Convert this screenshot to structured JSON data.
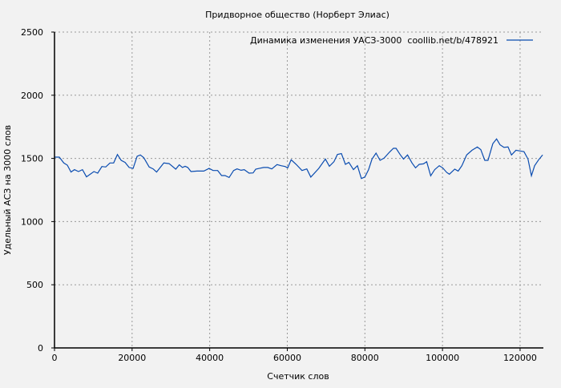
{
  "chart_data": {
    "type": "line",
    "title": "Придворное общество (Норберт Элиас)",
    "xlabel": "Счетчик слов",
    "ylabel": "Удельный АСЗ на 3000 слов",
    "xlim": [
      0,
      126000
    ],
    "ylim": [
      0,
      2500
    ],
    "xticks": [
      0,
      20000,
      40000,
      60000,
      80000,
      100000,
      120000
    ],
    "yticks": [
      0,
      500,
      1000,
      1500,
      2000,
      2500
    ],
    "grid": true,
    "legend_position": "top-right",
    "colors": {
      "line": "#0a4cb0",
      "background": "#f2f2f2",
      "grid": "#999999"
    },
    "series": [
      {
        "name": "Динамика изменения УАСЗ-3000  coollib.net/b/478921",
        "x": [
          0,
          1237,
          2405,
          3298,
          4260,
          5153,
          6184,
          7214,
          8245,
          10168,
          11130,
          12229,
          13191,
          14290,
          15251,
          16213,
          17176,
          18206,
          19237,
          20267,
          21298,
          22122,
          23015,
          24389,
          25420,
          26313,
          28168,
          29542,
          31259,
          32152,
          32976,
          33663,
          34350,
          35175,
          36755,
          38473,
          39847,
          40877,
          42045,
          43075,
          43956,
          44999,
          46167,
          47060,
          48090,
          48914,
          50151,
          51181,
          51868,
          52761,
          53929,
          54960,
          55990,
          57364,
          58395,
          59425,
          60112,
          61005,
          62268,
          63779,
          65016,
          66047,
          68108,
          69825,
          70856,
          72023,
          72917,
          73947,
          74978,
          75871,
          77039,
          78069,
          79100,
          79993,
          80954,
          81848,
          82878,
          83909,
          84939,
          86313,
          87344,
          88031,
          89061,
          89954,
          90985,
          92153,
          93046,
          94008,
          95107,
          95931,
          96962,
          97992,
          99160,
          100053,
          101084,
          101771,
          103145,
          104038,
          105000,
          106236,
          107610,
          108984,
          109877,
          110908,
          111732,
          112969,
          113930,
          114823,
          115854,
          116884,
          117777,
          118945,
          119976,
          121006,
          122037,
          122930,
          123754,
          124785,
          125815
        ],
        "y": [
          1510,
          1510,
          1464,
          1447,
          1392,
          1411,
          1396,
          1411,
          1354,
          1396,
          1383,
          1436,
          1432,
          1464,
          1464,
          1531,
          1485,
          1468,
          1428,
          1421,
          1517,
          1527,
          1506,
          1432,
          1417,
          1392,
          1464,
          1459,
          1415,
          1449,
          1428,
          1438,
          1428,
          1396,
          1400,
          1400,
          1421,
          1404,
          1404,
          1364,
          1364,
          1349,
          1404,
          1417,
          1406,
          1411,
          1383,
          1385,
          1415,
          1421,
          1428,
          1428,
          1417,
          1451,
          1442,
          1436,
          1425,
          1489,
          1453,
          1404,
          1417,
          1352,
          1421,
          1495,
          1438,
          1474,
          1531,
          1538,
          1453,
          1468,
          1411,
          1442,
          1341,
          1353,
          1411,
          1495,
          1542,
          1485,
          1502,
          1549,
          1580,
          1580,
          1531,
          1495,
          1527,
          1464,
          1425,
          1453,
          1457,
          1474,
          1362,
          1411,
          1442,
          1425,
          1389,
          1375,
          1415,
          1400,
          1442,
          1527,
          1565,
          1590,
          1570,
          1485,
          1485,
          1616,
          1654,
          1608,
          1587,
          1591,
          1527,
          1565,
          1559,
          1553,
          1495,
          1362,
          1442,
          1489,
          1527
        ]
      }
    ]
  }
}
